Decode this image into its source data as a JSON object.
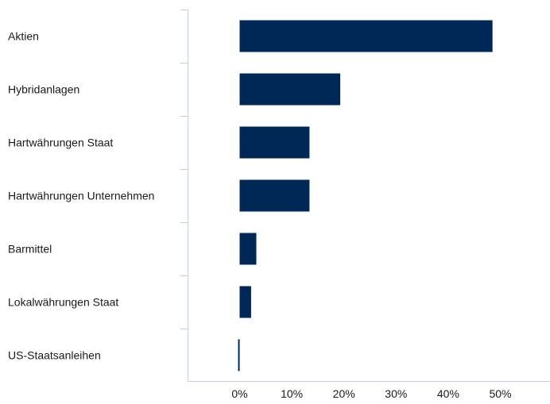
{
  "chart_data": {
    "type": "bar",
    "orientation": "horizontal",
    "categories": [
      "Aktien",
      "Hybridanlagen",
      "Hartwährungen Staat",
      "Hartwährungen Unternehmen",
      "Barmittel",
      "Lokalwährungen Staat",
      "US-Staatsanleihen"
    ],
    "values": [
      48.5,
      19.3,
      13.4,
      13.4,
      3.2,
      2.2,
      -0.3
    ],
    "x_ticks": [
      "0%",
      "10%",
      "20%",
      "30%",
      "40%",
      "50%"
    ],
    "xlim": [
      -10,
      58
    ],
    "grid": false,
    "legend": "none",
    "title": "",
    "xlabel": "",
    "ylabel": "",
    "bar_color": "#002856",
    "axis_color": "#c8cde3"
  }
}
